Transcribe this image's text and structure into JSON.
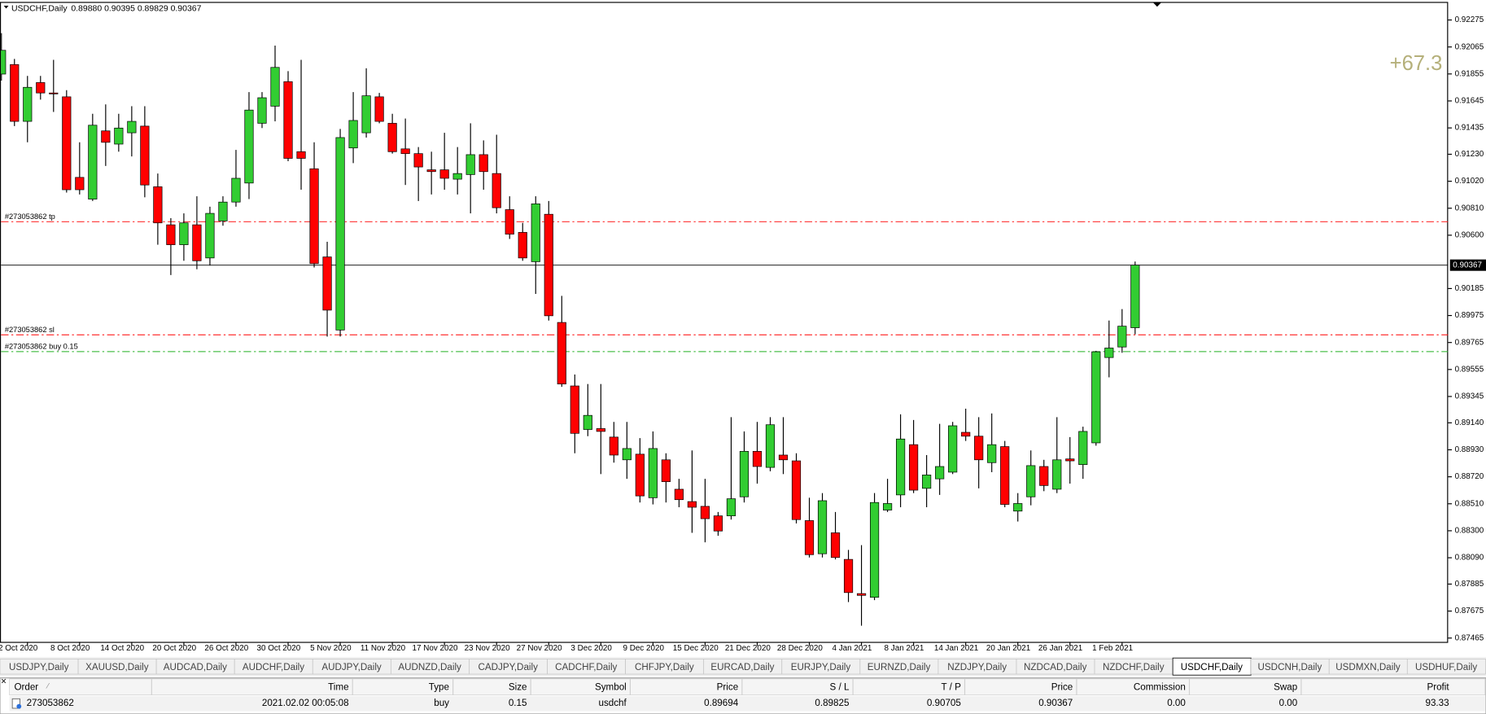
{
  "header": {
    "symbol": "USDCHF,Daily",
    "ohlc": "0.89880 0.90395 0.89829 0.90367"
  },
  "chart_data": {
    "type": "candlestick",
    "categories": [
      null,
      null,
      "2 Oct 2020",
      null,
      null,
      null,
      "8 Oct 2020",
      null,
      null,
      null,
      "14 Oct 2020",
      null,
      null,
      null,
      "20 Oct 2020",
      null,
      null,
      null,
      "26 Oct 2020",
      null,
      null,
      null,
      "30 Oct 2020",
      null,
      null,
      null,
      "5 Nov 2020",
      null,
      null,
      null,
      "11 Nov 2020",
      null,
      null,
      null,
      "17 Nov 2020",
      null,
      null,
      null,
      "23 Nov 2020",
      null,
      null,
      null,
      "27 Nov 2020",
      null,
      null,
      null,
      "3 Dec 2020",
      null,
      null,
      null,
      "9 Dec 2020",
      null,
      null,
      null,
      "15 Dec 2020",
      null,
      null,
      null,
      "21 Dec 2020",
      null,
      null,
      null,
      "28 Dec 2020",
      null,
      null,
      null,
      "4 Jan 2021",
      null,
      null,
      null,
      "8 Jan 2021",
      null,
      null,
      null,
      "14 Jan 2021",
      null,
      null,
      null,
      "20 Jan 2021",
      null,
      null,
      null,
      "26 Jan 2021",
      null,
      null,
      null,
      "1 Feb 2021",
      null
    ],
    "open": [
      0.91854,
      0.91928,
      0.91486,
      0.91788,
      0.91707,
      0.91677,
      0.9105,
      0.90881,
      0.91412,
      0.91309,
      0.91397,
      0.91449,
      0.90977,
      0.90681,
      0.90526,
      0.90681,
      0.90423,
      0.90711,
      0.90858,
      0.91006,
      0.91471,
      0.91604,
      0.91795,
      0.9125,
      0.91117,
      0.90431,
      0.89862,
      0.91279,
      0.91397,
      0.91677,
      0.91471,
      0.91272,
      0.91235,
      0.91109,
      0.91109,
      0.91036,
      0.91072,
      0.91227,
      0.9108,
      0.90799,
      0.90622,
      0.90394,
      0.90763,
      0.89921,
      0.89427,
      0.89088,
      0.89095,
      0.89029,
      0.88852,
      0.88896,
      0.88557,
      0.88852,
      0.88623,
      0.88527,
      0.8849,
      0.88416,
      0.88416,
      0.88564,
      0.88918,
      0.88793,
      0.88889,
      0.88844,
      0.88379,
      0.88121,
      0.88284,
      0.88077,
      0.87811,
      0.87782,
      0.88461,
      0.88579,
      0.8897,
      0.8863,
      0.88704,
      0.88756,
      0.89066,
      0.89036,
      0.8883,
      0.88955,
      0.88453,
      0.88564,
      0.888,
      0.88623,
      0.88859,
      0.88815,
      0.88984,
      0.89648,
      0.8973,
      0.8988
    ],
    "high": [
      0.92172,
      0.91972,
      0.9184,
      0.9184,
      0.91965,
      0.91729,
      0.91323,
      0.91545,
      0.91618,
      0.91545,
      0.91604,
      0.91604,
      0.9108,
      0.90733,
      0.9077,
      0.90903,
      0.90822,
      0.90903,
      0.91264,
      0.91714,
      0.91714,
      0.92076,
      0.91877,
      0.91965,
      0.91323,
      0.90549,
      0.91427,
      0.91714,
      0.91899,
      0.91707,
      0.91545,
      0.91508,
      0.91286,
      0.9125,
      0.91397,
      0.91286,
      0.91471,
      0.91338,
      0.91382,
      0.90903,
      0.90696,
      0.90903,
      0.90866,
      0.90128,
      0.89516,
      0.89442,
      0.89442,
      0.89147,
      0.89147,
      0.89021,
      0.89073,
      0.88903,
      0.88704,
      0.88925,
      0.88704,
      0.88446,
      0.89184,
      0.89073,
      0.89147,
      0.89184,
      0.89184,
      0.88903,
      0.88557,
      0.88593,
      0.88446,
      0.88151,
      0.88188,
      0.88593,
      0.88704,
      0.89206,
      0.89162,
      0.88889,
      0.89132,
      0.89147,
      0.8925,
      0.89184,
      0.89213,
      0.88999,
      0.88593,
      0.88925,
      0.88852,
      0.89184,
      0.89029,
      0.8911,
      0.897,
      0.89936,
      0.90025,
      0.90395
    ],
    "low": [
      0.91803,
      0.91449,
      0.91323,
      0.91655,
      0.91559,
      0.90932,
      0.90917,
      0.90866,
      0.91139,
      0.9125,
      0.91213,
      0.90895,
      0.90526,
      0.9029,
      0.90401,
      0.90335,
      0.90364,
      0.90674,
      0.90822,
      0.90881,
      0.91434,
      0.91486,
      0.91176,
      0.90954,
      0.90349,
      0.89811,
      0.89811,
      0.91161,
      0.9136,
      0.91471,
      0.91235,
      0.90991,
      0.90866,
      0.90917,
      0.90954,
      0.90917,
      0.9077,
      0.90954,
      0.9077,
      0.90571,
      0.90401,
      0.90143,
      0.89936,
      0.8942,
      0.88903,
      0.89036,
      0.88741,
      0.8883,
      0.88704,
      0.8852,
      0.88505,
      0.8852,
      0.88483,
      0.88284,
      0.8821,
      0.88261,
      0.88387,
      0.8852,
      0.88667,
      0.88763,
      0.88741,
      0.88357,
      0.88092,
      0.88092,
      0.88077,
      0.87745,
      0.87561,
      0.8776,
      0.88446,
      0.88483,
      0.88593,
      0.88483,
      0.88579,
      0.88741,
      0.88999,
      0.8863,
      0.88756,
      0.88483,
      0.88372,
      0.88498,
      0.88608,
      0.88593,
      0.88667,
      0.88704,
      0.88962,
      0.89494,
      0.89685,
      0.89829
    ],
    "close": [
      0.92039,
      0.91486,
      0.91751,
      0.91707,
      0.917,
      0.90954,
      0.90954,
      0.91456,
      0.91323,
      0.91434,
      0.91486,
      0.90991,
      0.90696,
      0.90526,
      0.90696,
      0.90401,
      0.9077,
      0.90858,
      0.91043,
      0.91574,
      0.9167,
      0.91906,
      0.91198,
      0.91198,
      0.90379,
      0.90017,
      0.9136,
      0.91493,
      0.91685,
      0.91486,
      0.9125,
      0.91235,
      0.91131,
      0.91095,
      0.91043,
      0.9108,
      0.91227,
      0.91095,
      0.90814,
      0.90608,
      0.90423,
      0.90844,
      0.89973,
      0.89442,
      0.89058,
      0.89198,
      0.89073,
      0.88889,
      0.8894,
      0.88571,
      0.8894,
      0.88682,
      0.88542,
      0.88483,
      0.88394,
      0.88298,
      0.88549,
      0.88918,
      0.888,
      0.89125,
      0.88852,
      0.88387,
      0.88114,
      0.88534,
      0.88092,
      0.87819,
      0.87797,
      0.8852,
      0.88512,
      0.89014,
      0.88616,
      0.88734,
      0.888,
      0.89117,
      0.89036,
      0.88852,
      0.8897,
      0.88505,
      0.88512,
      0.88807,
      0.88652,
      0.88852,
      0.88844,
      0.89073,
      0.89693,
      0.89722,
      0.89892,
      0.90367
    ],
    "up_color": "#32cd32",
    "down_color": "#ff0000",
    "ylim": [
      0.87435,
      0.92408
    ],
    "yticks": [
      0.92275,
      0.92065,
      0.91855,
      0.91645,
      0.91435,
      {
        "value": 0.9123,
        "label": "0.91230"
      },
      {
        "value": 0.9102,
        "label": "0.91020"
      },
      {
        "value": 0.9081,
        "label": "0.90810"
      },
      {
        "value": 0.906,
        "label": "0.90600"
      },
      0.90185,
      0.89975,
      0.89765,
      0.89555,
      0.89345,
      {
        "value": 0.8914,
        "label": "0.89140"
      },
      {
        "value": 0.8893,
        "label": "0.88930"
      },
      {
        "value": 0.8872,
        "label": "0.88720"
      },
      {
        "value": 0.8851,
        "label": "0.88510"
      },
      {
        "value": 0.883,
        "label": "0.88300"
      },
      {
        "value": 0.8809,
        "label": "0.88090"
      },
      0.87885,
      0.87675,
      0.87465
    ],
    "current_price": 0.90367,
    "levels": [
      {
        "name": "#273053862 tp",
        "value": 0.90705,
        "color": "#ff0000"
      },
      {
        "name": "#273053862 sl",
        "value": 0.89825,
        "color": "#ff0000"
      },
      {
        "name": "#273053862 buy 0.15",
        "value": 0.89694,
        "color": "#22b022"
      }
    ],
    "profit_label": "+67.3"
  },
  "tabs": [
    "USDJPY,Daily",
    "XAUUSD,Daily",
    "AUDCAD,Daily",
    "AUDCHF,Daily",
    "AUDJPY,Daily",
    "AUDNZD,Daily",
    "CADJPY,Daily",
    "CADCHF,Daily",
    "CHFJPY,Daily",
    "EURCAD,Daily",
    "EURJPY,Daily",
    "EURNZD,Daily",
    "NZDJPY,Daily",
    "NZDCAD,Daily",
    "NZDCHF,Daily",
    "USDCHF,Daily",
    "USDCNH,Daily",
    "USDMXN,Daily",
    "USDHUF,Daily"
  ],
  "active_tab": 15,
  "terminal": {
    "columns": [
      "Order",
      "Time",
      "Type",
      "Size",
      "Symbol",
      "Price",
      "S / L",
      "T / P",
      "Price",
      "Commission",
      "Swap",
      "Profit"
    ],
    "rows": [
      [
        "273053862",
        "2021.02.02 00:05:08",
        "buy",
        "0.15",
        "usdchf",
        "0.89694",
        "0.89825",
        "0.90705",
        "0.90367",
        "0.00",
        "0.00",
        "93.33"
      ]
    ]
  }
}
